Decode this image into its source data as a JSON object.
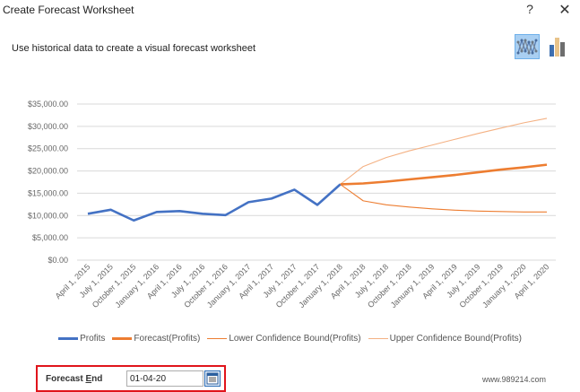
{
  "dialog": {
    "title": "Create Forecast Worksheet",
    "help_label": "?",
    "close_label": "✕",
    "subtitle": "Use historical data to create a visual forecast worksheet"
  },
  "chart_types": [
    {
      "name": "line-chart-icon",
      "selected": true
    },
    {
      "name": "column-chart-icon",
      "selected": false
    }
  ],
  "legend": [
    {
      "label": "Profits",
      "color": "#4472c4",
      "width": 3
    },
    {
      "label": "Forecast(Profits)",
      "color": "#ed7d31",
      "width": 3
    },
    {
      "label": "Lower Confidence Bound(Profits)",
      "color": "#ed7d31",
      "width": 1
    },
    {
      "label": "Upper Confidence Bound(Profits)",
      "color": "#f4b183",
      "width": 1
    }
  ],
  "forecast_end": {
    "label_prefix": "Forecast ",
    "label_accel": "E",
    "label_suffix": "nd",
    "value": "01-04-20"
  },
  "watermark": "www.989214.com",
  "colors": {
    "profits": "#4472c4",
    "forecast": "#ed7d31",
    "lower": "#ed7d31",
    "upper": "#f4b183",
    "grid": "#d9d9d9",
    "highlight_border": "#e0141b"
  },
  "chart_data": {
    "type": "line",
    "title": "",
    "xlabel": "",
    "ylabel": "",
    "ylim": [
      0,
      35000
    ],
    "yticks": [
      "$0.00",
      "$5,000.00",
      "$10,000.00",
      "$15,000.00",
      "$20,000.00",
      "$25,000.00",
      "$30,000.00",
      "$35,000.00"
    ],
    "grid": true,
    "legend_position": "bottom",
    "categories": [
      "April 1, 2015",
      "July 1, 2015",
      "October 1, 2015",
      "January 1, 2016",
      "April 1, 2016",
      "July 1, 2016",
      "October 1, 2016",
      "January 1, 2017",
      "April 1, 2017",
      "July 1, 2017",
      "October 1, 2017",
      "January 1, 2018",
      "April 1, 2018",
      "July 1, 2018",
      "October 1, 2018",
      "January 1, 2019",
      "April 1, 2019",
      "July 1, 2019",
      "October 1, 2019",
      "January 1, 2020",
      "April 1, 2020"
    ],
    "series": [
      {
        "name": "Profits",
        "values": [
          10400,
          11300,
          8900,
          10800,
          11000,
          10400,
          10100,
          13000,
          13800,
          15800,
          12400,
          17000,
          null,
          null,
          null,
          null,
          null,
          null,
          null,
          null,
          null
        ]
      },
      {
        "name": "Forecast(Profits)",
        "values": [
          null,
          null,
          null,
          null,
          null,
          null,
          null,
          null,
          null,
          null,
          null,
          17000,
          17200,
          17600,
          18100,
          18600,
          19100,
          19700,
          20300,
          20800,
          21400
        ]
      },
      {
        "name": "Lower Confidence Bound(Profits)",
        "values": [
          null,
          null,
          null,
          null,
          null,
          null,
          null,
          null,
          null,
          null,
          null,
          17000,
          13300,
          12400,
          11900,
          11500,
          11200,
          11000,
          10900,
          10800,
          10800
        ]
      },
      {
        "name": "Upper Confidence Bound(Profits)",
        "values": [
          null,
          null,
          null,
          null,
          null,
          null,
          null,
          null,
          null,
          null,
          null,
          17000,
          21000,
          23000,
          24500,
          25800,
          27100,
          28400,
          29600,
          30800,
          31800
        ]
      }
    ]
  }
}
